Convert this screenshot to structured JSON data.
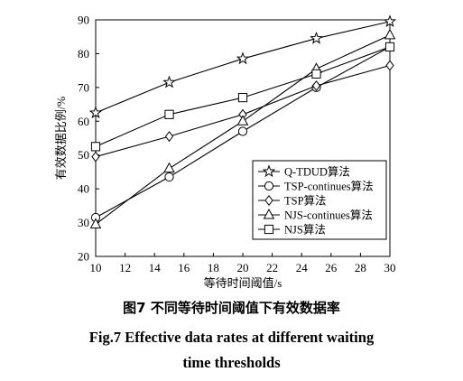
{
  "chart_data": {
    "type": "line",
    "xlabel": "等待时间阈值/s",
    "ylabel": "有效数据比例/%",
    "xlim": [
      10,
      30
    ],
    "ylim": [
      20,
      90
    ],
    "x_ticks": [
      "10",
      "12",
      "14",
      "16",
      "18",
      "20",
      "22",
      "24",
      "26",
      "28",
      "30"
    ],
    "y_ticks": [
      "20",
      "30",
      "40",
      "50",
      "60",
      "70",
      "80",
      "90"
    ],
    "x": [
      10,
      15,
      20,
      25,
      30
    ],
    "grid": false,
    "legend_position": "lower-right",
    "series": [
      {
        "name": "Q-TDUD算法",
        "marker": "star",
        "values": [
          62.5,
          71.5,
          78.5,
          84.5,
          89.5
        ]
      },
      {
        "name": "TSP-continues算法",
        "marker": "circle",
        "values": [
          31.5,
          43.5,
          57,
          70,
          82
        ]
      },
      {
        "name": "TSP算法",
        "marker": "diamond",
        "values": [
          49.5,
          55.5,
          62,
          70.5,
          76.5
        ]
      },
      {
        "name": "NJS-continues算法",
        "marker": "triangle",
        "values": [
          29.5,
          46,
          60,
          75.5,
          85.5
        ]
      },
      {
        "name": "NJS算法",
        "marker": "square",
        "values": [
          52.5,
          62,
          67,
          74,
          82
        ]
      }
    ]
  },
  "caption": {
    "zh": "图7    不同等待时间阈值下有效数据率",
    "en_line1": "Fig.7    Effective data rates at different waiting",
    "en_line2": "time thresholds"
  }
}
